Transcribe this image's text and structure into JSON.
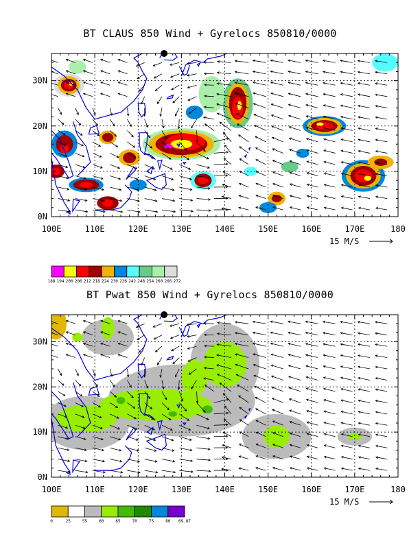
{
  "chart_data": [
    {
      "type": "heatmap",
      "title": "BT CLAUS 850 Wind + Gyrelocs 850810/0000",
      "x_tick_labels": [
        "100E",
        "110E",
        "120E",
        "130E",
        "140E",
        "150E",
        "160E",
        "170E",
        "180"
      ],
      "y_tick_labels": [
        "0N",
        "10N",
        "20N",
        "30N"
      ],
      "xlim": [
        100,
        180
      ],
      "ylim": [
        0,
        36
      ],
      "x_ticks": [
        100,
        110,
        120,
        130,
        140,
        150,
        160,
        170,
        180
      ],
      "y_ticks": [
        0,
        10,
        20,
        30
      ],
      "grid": true,
      "vector_reference_label": "15 M/S",
      "colorbar_labels": [
        "188",
        "194",
        "200",
        "206",
        "212",
        "218",
        "224",
        "230",
        "236",
        "242",
        "248",
        "254",
        "260",
        "266",
        "272"
      ],
      "colorbar_values": [
        188,
        194,
        200,
        206,
        212,
        218,
        224,
        230,
        236,
        242,
        248,
        254,
        260,
        266,
        272
      ],
      "colors": [
        "#ff00ff",
        "#ffff00",
        "#ff0000",
        "#a00000",
        "#f0b400",
        "#0088dd",
        "#55ffff",
        "#66cc88",
        "#aaeeaa",
        "#dddddd"
      ],
      "values": [
        {
          "lon": 104,
          "lat": 29,
          "level": 200
        },
        {
          "lon": 143,
          "lat": 24,
          "level": 206
        },
        {
          "lon": 131,
          "lat": 16,
          "level": 194
        },
        {
          "lon": 163,
          "lat": 20,
          "level": 206
        },
        {
          "lon": 172,
          "lat": 9,
          "level": 206
        },
        {
          "lon": 135,
          "lat": 8,
          "level": 212
        }
      ],
      "gyre_center": {
        "lon": 126,
        "lat": 36
      }
    },
    {
      "type": "heatmap",
      "title": "BT Pwat 850 Wind + Gyrelocs 850810/0000",
      "x_tick_labels": [
        "100E",
        "110E",
        "120E",
        "130E",
        "140E",
        "150E",
        "160E",
        "170E",
        "180"
      ],
      "y_tick_labels": [
        "0N",
        "10N",
        "20N",
        "30N"
      ],
      "xlim": [
        100,
        180
      ],
      "ylim": [
        0,
        36
      ],
      "x_ticks": [
        100,
        110,
        120,
        130,
        140,
        150,
        160,
        170,
        180
      ],
      "y_ticks": [
        0,
        10,
        20,
        30
      ],
      "grid": true,
      "vector_reference_label": "15 M/S",
      "colorbar_labels": [
        "0",
        "25",
        "55",
        "60",
        "65",
        "70",
        "75",
        "80",
        "69.87"
      ],
      "colorbar_values": [
        0,
        25,
        55,
        60,
        65,
        70,
        75,
        80,
        69.87
      ],
      "colors": [
        "#e0b800",
        "#ffffff",
        "#bbbbbb",
        "#99ee00",
        "#44bb00",
        "#228800",
        "#0088dd",
        "#7700cc"
      ],
      "values": [
        {
          "lon": 125,
          "lat": 17,
          "level": 60
        },
        {
          "lon": 140,
          "lat": 24,
          "level": 60
        },
        {
          "lon": 152,
          "lat": 9,
          "level": 60
        },
        {
          "lon": 170,
          "lat": 9,
          "level": 60
        }
      ],
      "gyre_center": {
        "lon": 126,
        "lat": 36
      }
    }
  ]
}
